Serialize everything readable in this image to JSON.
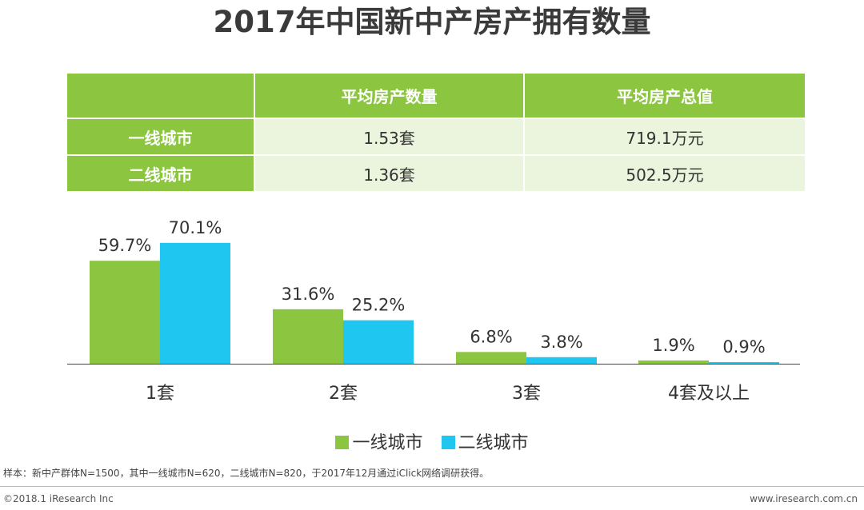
{
  "title": "2017年中国新中产房产拥有数量",
  "table": {
    "headers": [
      "",
      "平均房产数量",
      "平均房产总值"
    ],
    "rows": [
      {
        "label": "一线城市",
        "count": "1.53套",
        "value": "719.1万元"
      },
      {
        "label": "二线城市",
        "count": "1.36套",
        "value": "502.5万元"
      }
    ]
  },
  "colors": {
    "tier1": "#8cc540",
    "tier2": "#1ec6f0",
    "table_header": "#8cc540",
    "table_cell": "#ebf4dc"
  },
  "chart_data": {
    "type": "bar",
    "categories": [
      "1套",
      "2套",
      "3套",
      "4套及以上"
    ],
    "series": [
      {
        "name": "一线城市",
        "values": [
          59.7,
          31.6,
          6.8,
          1.9
        ],
        "labels": [
          "59.7%",
          "31.6%",
          "6.8%",
          "1.9%"
        ]
      },
      {
        "name": "二线城市",
        "values": [
          70.1,
          25.2,
          3.8,
          0.9
        ],
        "labels": [
          "70.1%",
          "25.2%",
          "3.8%",
          "0.9%"
        ]
      }
    ],
    "title": "",
    "xlabel": "",
    "ylabel": "",
    "ylim": [
      0,
      80
    ],
    "grid": false,
    "legend": "bottom"
  },
  "legend": {
    "tier1": "一线城市",
    "tier2": "二线城市"
  },
  "note": "样本：新中产群体N=1500，其中一线城市N=620，二线城市N=820，于2017年12月通过iClick网络调研获得。",
  "footer": {
    "left": "©2018.1 iResearch Inc",
    "right": "www.iresearch.com.cn"
  }
}
